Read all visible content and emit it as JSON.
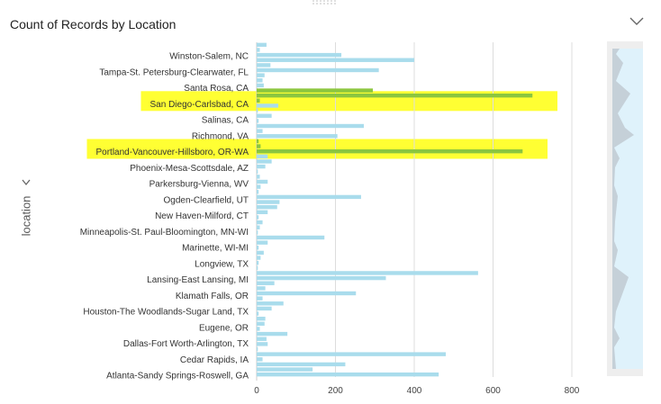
{
  "header": {
    "title": "Count of Records by Location",
    "collapse_icon": "chevron-down-icon"
  },
  "colors": {
    "bar": "#a9dcec",
    "bar_selected": "#8cc63f",
    "highlight": "#ffff33",
    "grid": "#dddddd",
    "minimap_bg": "#dff2fb",
    "minimap_peak": "#b8c7d2"
  },
  "chart_data": {
    "type": "bar",
    "orientation": "horizontal",
    "title": "Count of Records by Location",
    "ylabel": "location",
    "xlabel": "",
    "xlim": [
      0,
      900
    ],
    "xticks": [
      0,
      200,
      400,
      600,
      800
    ],
    "grid": true,
    "labeled_categories": [
      "Winston-Salem, NC",
      "Tampa-St. Petersburg-Clearwater, FL",
      "Santa Rosa, CA",
      "San Diego-Carlsbad, CA",
      "Salinas, CA",
      "Richmond, VA",
      "Portland-Vancouver-Hillsboro, OR-WA",
      "Phoenix-Mesa-Scottsdale, AZ",
      "Parkersburg-Vienna, WV",
      "Ogden-Clearfield, UT",
      "New Haven-Milford, CT",
      "Minneapolis-St. Paul-Bloomington, MN-WI",
      "Marinette, WI-MI",
      "Longview, TX",
      "Lansing-East Lansing, MI",
      "Klamath Falls, OR",
      "Houston-The Woodlands-Sugar Land, TX",
      "Eugene, OR",
      "Dallas-Fort Worth-Arlington, TX",
      "Cedar Rapids, IA",
      "Atlanta-Sandy Springs-Roswell, GA"
    ],
    "highlighted_categories": [
      "San Diego-Carlsbad, CA",
      "Portland-Vancouver-Hillsboro, OR-WA"
    ],
    "bars": [
      {
        "v": 25
      },
      {
        "v": 8
      },
      {
        "v": 215
      },
      {
        "v": 400
      },
      {
        "v": 35
      },
      {
        "v": 310
      },
      {
        "v": 20
      },
      {
        "v": 15
      },
      {
        "v": 18
      },
      {
        "v": 295,
        "sel": true
      },
      {
        "v": 700,
        "sel": true
      },
      {
        "v": 8,
        "sel": true
      },
      {
        "v": 55
      },
      {
        "v": 3
      },
      {
        "v": 38
      },
      {
        "v": 5
      },
      {
        "v": 272
      },
      {
        "v": 15
      },
      {
        "v": 205
      },
      {
        "v": 5,
        "sel": true
      },
      {
        "v": 10,
        "sel": true
      },
      {
        "v": 675,
        "sel": true
      },
      {
        "v": 28
      },
      {
        "v": 38
      },
      {
        "v": 22
      },
      {
        "v": 3
      },
      {
        "v": 8
      },
      {
        "v": 28
      },
      {
        "v": 10
      },
      {
        "v": 5
      },
      {
        "v": 265
      },
      {
        "v": 58
      },
      {
        "v": 52
      },
      {
        "v": 28
      },
      {
        "v": 5
      },
      {
        "v": 15
      },
      {
        "v": 8
      },
      {
        "v": 3
      },
      {
        "v": 172
      },
      {
        "v": 28
      },
      {
        "v": 5
      },
      {
        "v": 18
      },
      {
        "v": 10
      },
      {
        "v": 5
      },
      {
        "v": 3
      },
      {
        "v": 562
      },
      {
        "v": 328
      },
      {
        "v": 45
      },
      {
        "v": 22
      },
      {
        "v": 252
      },
      {
        "v": 15
      },
      {
        "v": 68
      },
      {
        "v": 38
      },
      {
        "v": 5
      },
      {
        "v": 22
      },
      {
        "v": 20
      },
      {
        "v": 8
      },
      {
        "v": 78
      },
      {
        "v": 25
      },
      {
        "v": 28
      },
      {
        "v": 3
      },
      {
        "v": 480
      },
      {
        "v": 15
      },
      {
        "v": 225
      },
      {
        "v": 142
      },
      {
        "v": 462
      }
    ]
  }
}
